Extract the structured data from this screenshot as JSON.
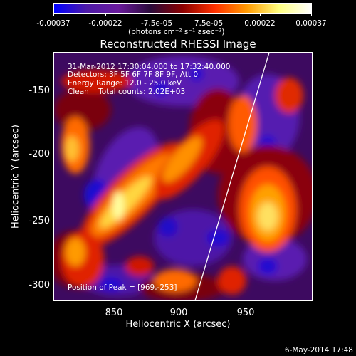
{
  "colorbar": {
    "ticks": [
      "-0.00037",
      "-0.00022",
      "-7.5e-05",
      "7.5e-05",
      "0.00022",
      "0.00037"
    ],
    "units": "(photons cm⁻² s⁻¹ asec⁻²)",
    "colors": [
      "#0000ff",
      "#4d1aa8",
      "#6a1a9c",
      "#2a0a3a",
      "#8b0000",
      "#ff3000",
      "#ff9a00",
      "#ffff80",
      "#ffffff"
    ]
  },
  "title": "Reconstructed RHESSI Image",
  "info": {
    "time_range": "31-Mar-2012 17:30:04.000 to 17:32:40.000",
    "detectors": "Detectors: 3F 5F 6F 7F 8F 9F, Att 0",
    "energy": "Energy Range: 12.0 - 25.0 keV",
    "clean": "Clean    Total counts: 2.02E+03",
    "peak": "Position of Peak = [969,-253]"
  },
  "axes": {
    "xlabel": "Heliocentric X (arcsec)",
    "ylabel": "Heliocentric Y (arcsec)",
    "xticks": [
      "850",
      "900",
      "950"
    ],
    "yticks": [
      "-150",
      "-200",
      "-250",
      "-300"
    ]
  },
  "footer": {
    "date": "6-May-2014 17:48"
  }
}
